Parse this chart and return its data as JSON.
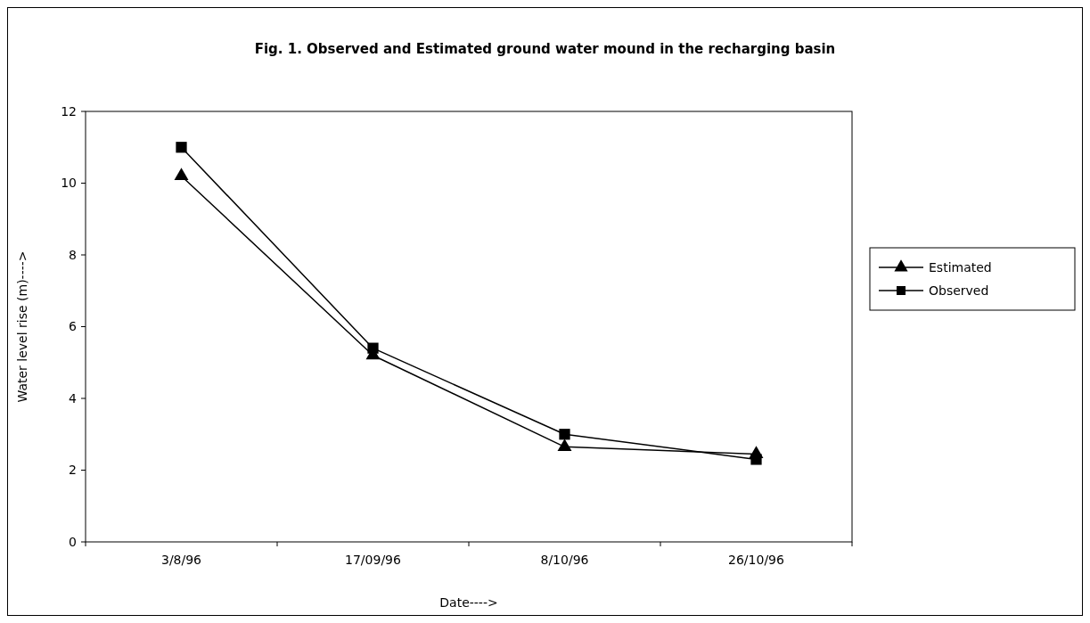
{
  "chart_data": {
    "type": "line",
    "title": "Fig. 1. Observed and Estimated ground water mound in the recharging basin",
    "xlabel": "Date---->",
    "ylabel": "Water level rise (m)---->",
    "categories": [
      "3/8/96",
      "17/09/96",
      "8/10/96",
      "26/10/96"
    ],
    "series": [
      {
        "name": "Estimated",
        "color": "#000000",
        "marker": "triangle",
        "values": [
          10.2,
          5.2,
          2.65,
          2.45
        ]
      },
      {
        "name": "Observed",
        "color": "#000000",
        "marker": "square",
        "values": [
          11.0,
          5.4,
          3.0,
          2.3
        ]
      }
    ],
    "ylim": [
      0,
      12
    ],
    "yticks": [
      0,
      2,
      4,
      6,
      8,
      10,
      12
    ],
    "grid": false,
    "legend": "right",
    "line_style": "solid"
  }
}
